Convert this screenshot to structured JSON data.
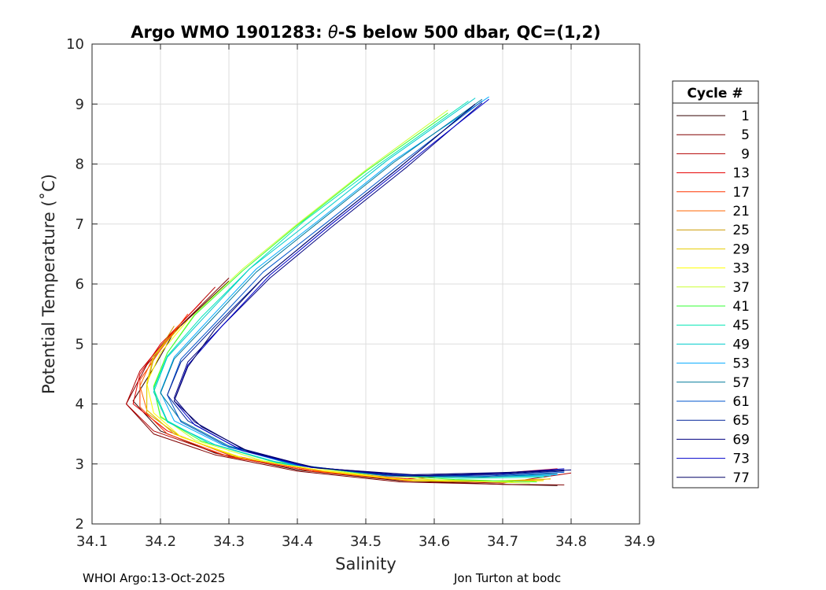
{
  "chart_data": {
    "type": "line",
    "title_prefix": "Argo WMO 1901283: ",
    "title_theta": "θ",
    "title_suffix": "-S below 500 dbar,  QC=(1,2)",
    "xlabel": "Salinity",
    "ylabel": "Potential Temperature (˚C)",
    "xlim": [
      34.1,
      34.9
    ],
    "ylim": [
      2,
      10
    ],
    "xticks": [
      "34.1",
      "34.2",
      "34.3",
      "34.4",
      "34.5",
      "34.6",
      "34.7",
      "34.8",
      "34.9"
    ],
    "yticks": [
      "2",
      "3",
      "4",
      "5",
      "6",
      "7",
      "8",
      "9",
      "10"
    ],
    "grid": true,
    "legend_title": "Cycle #",
    "legend_position": "outside-right",
    "series": [
      {
        "name": "1",
        "color": "#330000",
        "values": [
          [
            34.3,
            6.05
          ],
          [
            34.22,
            5.2
          ],
          [
            34.19,
            4.6
          ],
          [
            34.16,
            4.05
          ],
          [
            34.2,
            3.55
          ],
          [
            34.28,
            3.18
          ],
          [
            34.4,
            2.9
          ],
          [
            34.55,
            2.72
          ],
          [
            34.7,
            2.66
          ],
          [
            34.78,
            2.64
          ]
        ]
      },
      {
        "name": "5",
        "color": "#800000",
        "values": [
          [
            34.3,
            6.1
          ],
          [
            34.22,
            5.2
          ],
          [
            34.18,
            4.65
          ],
          [
            34.15,
            4.0
          ],
          [
            34.19,
            3.5
          ],
          [
            34.28,
            3.15
          ],
          [
            34.4,
            2.88
          ],
          [
            34.55,
            2.7
          ],
          [
            34.7,
            2.66
          ],
          [
            34.79,
            2.65
          ]
        ]
      },
      {
        "name": "9",
        "color": "#b30000",
        "values": [
          [
            34.28,
            5.95
          ],
          [
            34.21,
            5.1
          ],
          [
            34.17,
            4.55
          ],
          [
            34.15,
            4.0
          ],
          [
            34.19,
            3.55
          ],
          [
            34.29,
            3.15
          ],
          [
            34.42,
            2.88
          ],
          [
            34.56,
            2.72
          ],
          [
            34.7,
            2.68
          ],
          [
            34.8,
            2.85
          ]
        ]
      },
      {
        "name": "13",
        "color": "#e60000",
        "values": [
          [
            34.26,
            5.7
          ],
          [
            34.2,
            5.0
          ],
          [
            34.17,
            4.5
          ],
          [
            34.16,
            4.0
          ],
          [
            34.21,
            3.55
          ],
          [
            34.3,
            3.15
          ],
          [
            34.42,
            2.9
          ],
          [
            34.56,
            2.75
          ],
          [
            34.7,
            2.85
          ],
          [
            34.78,
            2.92
          ]
        ]
      },
      {
        "name": "17",
        "color": "#ff3300",
        "values": [
          [
            34.24,
            5.5
          ],
          [
            34.2,
            4.9
          ],
          [
            34.17,
            4.4
          ],
          [
            34.17,
            3.95
          ],
          [
            34.21,
            3.5
          ],
          [
            34.3,
            3.12
          ],
          [
            34.42,
            2.88
          ],
          [
            34.56,
            2.72
          ],
          [
            34.7,
            2.7
          ],
          [
            34.77,
            2.75
          ]
        ]
      },
      {
        "name": "21",
        "color": "#ff6600",
        "values": [
          [
            34.23,
            5.35
          ],
          [
            34.19,
            4.8
          ],
          [
            34.17,
            4.3
          ],
          [
            34.18,
            3.9
          ],
          [
            34.22,
            3.5
          ],
          [
            34.31,
            3.12
          ],
          [
            34.43,
            2.88
          ],
          [
            34.56,
            2.72
          ],
          [
            34.7,
            2.7
          ],
          [
            34.76,
            2.74
          ]
        ]
      },
      {
        "name": "25",
        "color": "#cc9900",
        "values": [
          [
            34.22,
            5.3
          ],
          [
            34.19,
            4.75
          ],
          [
            34.18,
            4.3
          ],
          [
            34.18,
            3.85
          ],
          [
            34.23,
            3.45
          ],
          [
            34.32,
            3.1
          ],
          [
            34.44,
            2.88
          ],
          [
            34.57,
            2.72
          ],
          [
            34.7,
            2.72
          ],
          [
            34.76,
            2.74
          ]
        ]
      },
      {
        "name": "29",
        "color": "#e6cc00",
        "values": [
          [
            34.23,
            5.3
          ],
          [
            34.19,
            4.8
          ],
          [
            34.18,
            4.35
          ],
          [
            34.18,
            3.9
          ],
          [
            34.22,
            3.5
          ],
          [
            34.31,
            3.12
          ],
          [
            34.43,
            2.9
          ],
          [
            34.56,
            2.74
          ],
          [
            34.7,
            2.72
          ],
          [
            34.77,
            2.75
          ]
        ]
      },
      {
        "name": "33",
        "color": "#ffff00",
        "values": [
          [
            34.24,
            5.4
          ],
          [
            34.2,
            4.85
          ],
          [
            34.18,
            4.35
          ],
          [
            34.19,
            3.85
          ],
          [
            34.23,
            3.45
          ],
          [
            34.32,
            3.1
          ],
          [
            34.44,
            2.88
          ],
          [
            34.57,
            2.72
          ],
          [
            34.7,
            2.7
          ],
          [
            34.76,
            2.72
          ]
        ]
      },
      {
        "name": "37",
        "color": "#ccff33",
        "values": [
          [
            34.62,
            8.9
          ],
          [
            34.5,
            7.9
          ],
          [
            34.4,
            7.0
          ],
          [
            34.32,
            6.25
          ],
          [
            34.25,
            5.5
          ],
          [
            34.21,
            4.85
          ],
          [
            34.19,
            4.3
          ],
          [
            34.2,
            3.8
          ],
          [
            34.25,
            3.4
          ],
          [
            34.35,
            3.05
          ],
          [
            34.48,
            2.85
          ],
          [
            34.62,
            2.72
          ],
          [
            34.74,
            2.68
          ]
        ]
      },
      {
        "name": "41",
        "color": "#33ff33",
        "values": [
          [
            34.62,
            8.85
          ],
          [
            34.5,
            7.88
          ],
          [
            34.4,
            6.98
          ],
          [
            34.32,
            6.22
          ],
          [
            34.25,
            5.48
          ],
          [
            34.21,
            4.85
          ],
          [
            34.19,
            4.28
          ],
          [
            34.2,
            3.78
          ],
          [
            34.26,
            3.38
          ],
          [
            34.36,
            3.05
          ],
          [
            34.49,
            2.85
          ],
          [
            34.63,
            2.74
          ],
          [
            34.75,
            2.7
          ]
        ]
      },
      {
        "name": "45",
        "color": "#00e6b3",
        "values": [
          [
            34.65,
            9.05
          ],
          [
            34.52,
            8.0
          ],
          [
            34.41,
            7.05
          ],
          [
            34.33,
            6.25
          ],
          [
            34.26,
            5.45
          ],
          [
            34.21,
            4.8
          ],
          [
            34.19,
            4.25
          ],
          [
            34.21,
            3.72
          ],
          [
            34.27,
            3.35
          ],
          [
            34.37,
            3.02
          ],
          [
            34.5,
            2.84
          ],
          [
            34.64,
            2.76
          ],
          [
            34.76,
            2.78
          ]
        ]
      },
      {
        "name": "49",
        "color": "#00cccc",
        "values": [
          [
            34.66,
            9.1
          ],
          [
            34.53,
            8.05
          ],
          [
            34.42,
            7.05
          ],
          [
            34.33,
            6.25
          ],
          [
            34.26,
            5.4
          ],
          [
            34.21,
            4.78
          ],
          [
            34.19,
            4.2
          ],
          [
            34.21,
            3.7
          ],
          [
            34.28,
            3.32
          ],
          [
            34.38,
            3.0
          ],
          [
            34.51,
            2.83
          ],
          [
            34.65,
            2.78
          ],
          [
            34.77,
            2.8
          ]
        ]
      },
      {
        "name": "53",
        "color": "#00aaff",
        "values": [
          [
            34.68,
            9.12
          ],
          [
            34.54,
            8.05
          ],
          [
            34.43,
            7.05
          ],
          [
            34.34,
            6.25
          ],
          [
            34.27,
            5.4
          ],
          [
            34.22,
            4.78
          ],
          [
            34.2,
            4.2
          ],
          [
            34.22,
            3.72
          ],
          [
            34.29,
            3.32
          ],
          [
            34.39,
            3.0
          ],
          [
            34.52,
            2.82
          ],
          [
            34.66,
            2.78
          ],
          [
            34.78,
            2.82
          ]
        ]
      },
      {
        "name": "57",
        "color": "#007a99",
        "values": [
          [
            34.67,
            9.08
          ],
          [
            34.54,
            8.02
          ],
          [
            34.43,
            7.02
          ],
          [
            34.34,
            6.2
          ],
          [
            34.27,
            5.35
          ],
          [
            34.22,
            4.75
          ],
          [
            34.2,
            4.18
          ],
          [
            34.23,
            3.72
          ],
          [
            34.3,
            3.3
          ],
          [
            34.4,
            2.98
          ],
          [
            34.53,
            2.8
          ],
          [
            34.67,
            2.78
          ],
          [
            34.78,
            2.84
          ]
        ]
      },
      {
        "name": "61",
        "color": "#0055cc",
        "values": [
          [
            34.67,
            9.05
          ],
          [
            34.55,
            8.0
          ],
          [
            34.44,
            7.0
          ],
          [
            34.35,
            6.2
          ],
          [
            34.28,
            5.35
          ],
          [
            34.23,
            4.75
          ],
          [
            34.21,
            4.15
          ],
          [
            34.23,
            3.7
          ],
          [
            34.3,
            3.28
          ],
          [
            34.4,
            2.98
          ],
          [
            34.54,
            2.8
          ],
          [
            34.68,
            2.8
          ],
          [
            34.79,
            2.86
          ]
        ]
      },
      {
        "name": "65",
        "color": "#002299",
        "values": [
          [
            34.66,
            9.0
          ],
          [
            34.55,
            7.95
          ],
          [
            34.44,
            6.95
          ],
          [
            34.35,
            6.1
          ],
          [
            34.28,
            5.3
          ],
          [
            34.23,
            4.7
          ],
          [
            34.21,
            4.15
          ],
          [
            34.24,
            3.72
          ],
          [
            34.31,
            3.28
          ],
          [
            34.41,
            2.96
          ],
          [
            34.55,
            2.8
          ],
          [
            34.69,
            2.82
          ],
          [
            34.79,
            2.88
          ]
        ]
      },
      {
        "name": "69",
        "color": "#000080",
        "values": [
          [
            34.67,
            9.02
          ],
          [
            34.56,
            7.95
          ],
          [
            34.45,
            6.95
          ],
          [
            34.36,
            6.1
          ],
          [
            34.29,
            5.3
          ],
          [
            34.24,
            4.7
          ],
          [
            34.22,
            4.1
          ],
          [
            34.25,
            3.7
          ],
          [
            34.32,
            3.25
          ],
          [
            34.42,
            2.95
          ],
          [
            34.56,
            2.8
          ],
          [
            34.7,
            2.84
          ],
          [
            34.8,
            2.9
          ]
        ]
      },
      {
        "name": "73",
        "color": "#0000cc",
        "values": [
          [
            34.68,
            9.08
          ],
          [
            34.56,
            8.0
          ],
          [
            34.45,
            7.0
          ],
          [
            34.36,
            6.15
          ],
          [
            34.29,
            5.3
          ],
          [
            34.24,
            4.65
          ],
          [
            34.22,
            4.05
          ],
          [
            34.25,
            3.65
          ],
          [
            34.32,
            3.22
          ],
          [
            34.42,
            2.94
          ],
          [
            34.56,
            2.82
          ],
          [
            34.7,
            2.85
          ],
          [
            34.79,
            2.92
          ]
        ]
      },
      {
        "name": "77",
        "color": "#000066",
        "values": [
          [
            34.66,
            9.0
          ],
          [
            34.55,
            7.95
          ],
          [
            34.44,
            6.95
          ],
          [
            34.35,
            6.1
          ],
          [
            34.28,
            5.25
          ],
          [
            34.24,
            4.62
          ],
          [
            34.22,
            4.05
          ],
          [
            34.26,
            3.62
          ],
          [
            34.33,
            3.2
          ],
          [
            34.43,
            2.93
          ],
          [
            34.57,
            2.82
          ],
          [
            34.71,
            2.86
          ],
          [
            34.79,
            2.9
          ]
        ]
      }
    ]
  },
  "footer": {
    "left": "WHOI Argo:13-Oct-2025",
    "right": "Jon Turton at bodc"
  }
}
